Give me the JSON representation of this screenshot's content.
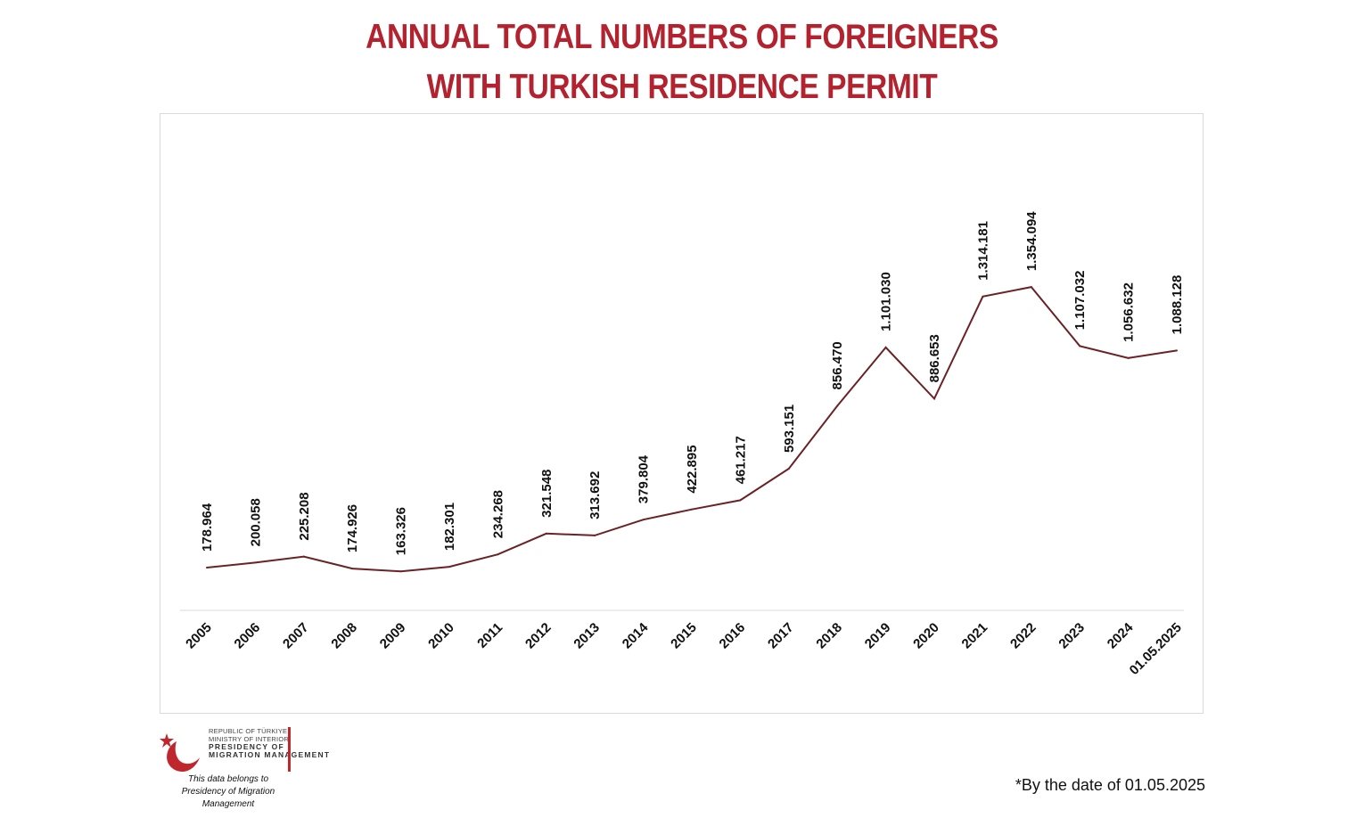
{
  "chart_data": {
    "type": "line",
    "title_lines": [
      "ANNUAL TOTAL NUMBERS OF FOREIGNERS",
      "WITH TURKISH RESIDENCE PERMIT"
    ],
    "categories": [
      "2005",
      "2006",
      "2007",
      "2008",
      "2009",
      "2010",
      "2011",
      "2012",
      "2013",
      "2014",
      "2015",
      "2016",
      "2017",
      "2018",
      "2019",
      "2020",
      "2021",
      "2022",
      "2023",
      "2024",
      "01.05.2025"
    ],
    "values": [
      178964,
      200058,
      225208,
      174926,
      163326,
      182301,
      234268,
      321548,
      313692,
      379804,
      422895,
      461217,
      593151,
      856470,
      1101030,
      886653,
      1314181,
      1354094,
      1107032,
      1056632,
      1088128
    ],
    "value_labels": [
      "178.964",
      "200.058",
      "225.208",
      "174.926",
      "163.326",
      "182.301",
      "234.268",
      "321.548",
      "313.692",
      "379.804",
      "422.895",
      "461.217",
      "593.151",
      "856.470",
      "1.101.030",
      "886.653",
      "1.314.181",
      "1.354.094",
      "1.107.032",
      "1.056.632",
      "1.088.128"
    ],
    "ylim": [
      0,
      1600000
    ],
    "grid": false,
    "legend": "none",
    "line_color": "#6b2226"
  },
  "colors": {
    "title": "#b2232f",
    "accent": "#c0272d"
  },
  "logo": {
    "lines": [
      "REPUBLIC OF TÜRKIYE",
      "MINISTRY OF INTERIOR",
      "PRESIDENCY OF",
      "MIGRATION MANAGEMENT"
    ],
    "caption": [
      "This data belongs to",
      "Presidency of Migration Management"
    ]
  },
  "footnote": "*By the date of 01.05.2025"
}
